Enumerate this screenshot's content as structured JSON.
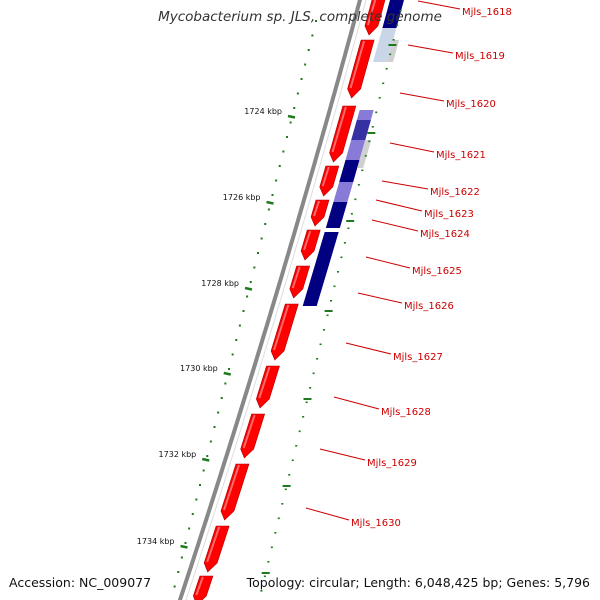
{
  "title": "Mycobacterium sp. JLS, complete genome",
  "footer": {
    "accession": "Accession: NC_009077",
    "summary": "Topology: circular; Length: 6,048,425 bp; Genes: 5,796"
  },
  "ruler_ticks": [
    "1724 kbp",
    "1726 kbp",
    "1728 kbp",
    "1730 kbp",
    "1732 kbp",
    "1734 kbp"
  ],
  "gene_labels": [
    "Mjls_1618",
    "Mjls_1619",
    "Mjls_1620",
    "Mjls_1621",
    "Mjls_1622",
    "Mjls_1623",
    "Mjls_1624",
    "Mjls_1625",
    "Mjls_1626",
    "Mjls_1627",
    "Mjls_1628",
    "Mjls_1629",
    "Mjls_1630"
  ],
  "colors": {
    "forward_gene": "#ff0000",
    "backbone": "#888888",
    "ruler_tick": "#1f7a1f",
    "gene_label": "#cc0000",
    "expression_high": "#000080",
    "expression_mid": "#6a5acd",
    "expression_low": "#b0c4de"
  }
}
